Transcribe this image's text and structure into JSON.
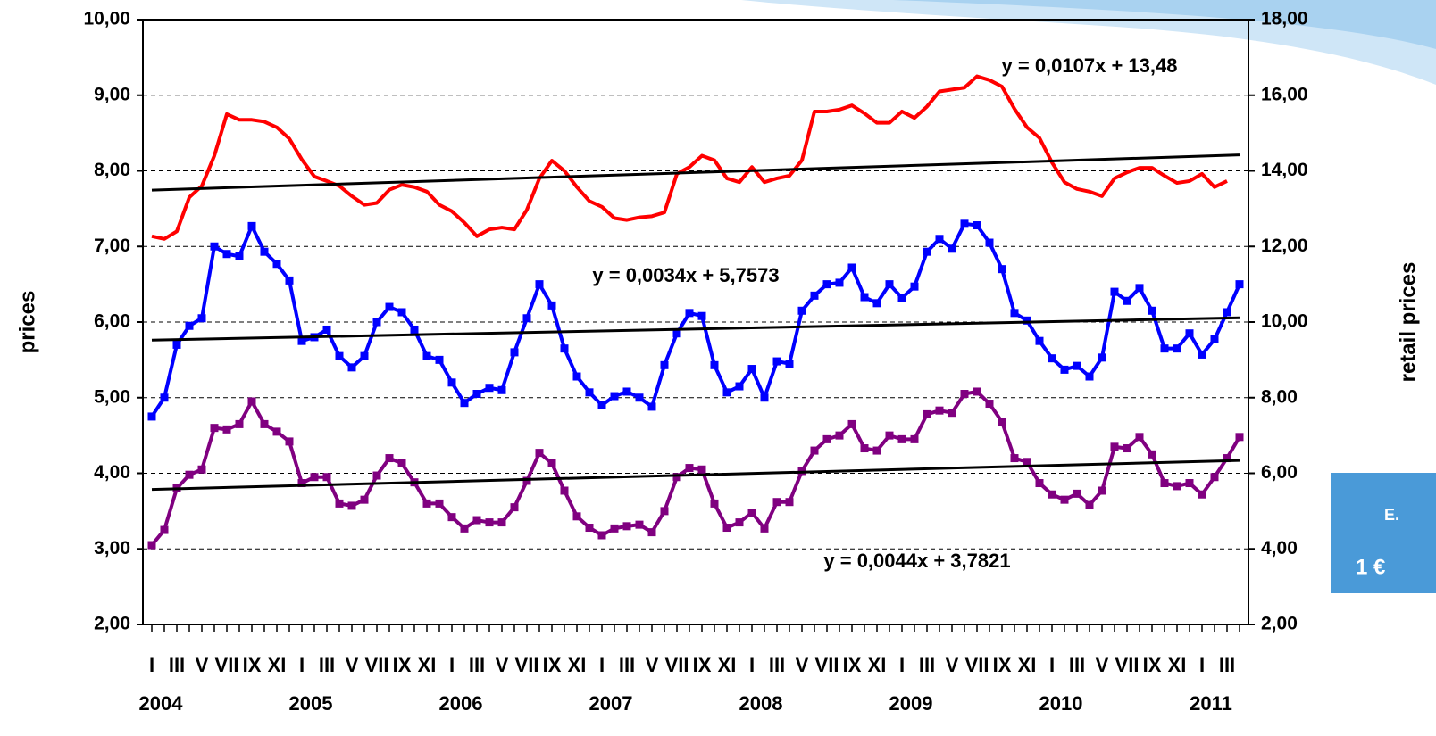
{
  "chart_data": {
    "type": "line",
    "categories": [
      "I",
      null,
      "III",
      null,
      "V",
      null,
      "VII",
      null,
      "IX",
      null,
      "XI",
      null,
      "I",
      null,
      "III",
      null,
      "V",
      null,
      "VII",
      null,
      "IX",
      null,
      "XI",
      null,
      "I",
      null,
      "III",
      null,
      "V",
      null,
      "VII",
      null,
      "IX",
      null,
      "XI",
      null,
      "I",
      null,
      "III",
      null,
      "V",
      null,
      "VII",
      null,
      "IX",
      null,
      "XI",
      null,
      "I",
      null,
      "III",
      null,
      "V",
      null,
      "VII",
      null,
      "IX",
      null,
      "XI",
      null,
      "I",
      null,
      "III",
      null,
      "V",
      null,
      "VII",
      null,
      "IX",
      null,
      "XI",
      null,
      "I",
      null,
      "III",
      null,
      "V",
      null,
      "VII",
      null,
      "IX",
      null,
      "XI",
      null,
      "I",
      null,
      "III",
      null
    ],
    "years": [
      "2004",
      "2005",
      "2006",
      "2007",
      "2008",
      "2009",
      "2010",
      "2011"
    ],
    "ylabel": "prices",
    "y2label": "retail prices",
    "ylim": [
      2,
      10
    ],
    "yticks": [
      {
        "value": 2,
        "label": "2,00"
      },
      {
        "value": 3,
        "label": "3,00"
      },
      {
        "value": 4,
        "label": "4,00"
      },
      {
        "value": 5,
        "label": "5,00"
      },
      {
        "value": 6,
        "label": "6,00"
      },
      {
        "value": 7,
        "label": "7,00"
      },
      {
        "value": 8,
        "label": "8,00"
      },
      {
        "value": 9,
        "label": "9,00"
      },
      {
        "value": 10,
        "label": "10,00"
      }
    ],
    "y2lim": [
      2,
      18
    ],
    "y2ticks": [
      {
        "value": 2,
        "label": "2,00"
      },
      {
        "value": 4,
        "label": "4,00"
      },
      {
        "value": 6,
        "label": "6,00"
      },
      {
        "value": 8,
        "label": "8,00"
      },
      {
        "value": 10,
        "label": "10,00"
      },
      {
        "value": 12,
        "label": "12,00"
      },
      {
        "value": 14,
        "label": "14,00"
      },
      {
        "value": 16,
        "label": "16,00"
      },
      {
        "value": 18,
        "label": "18,00"
      }
    ],
    "grid": true,
    "series": [
      {
        "color": "#ff0000",
        "axis": "y2",
        "markers": false,
        "values": [
          12.27,
          12.2,
          12.4,
          13.3,
          13.6,
          14.4,
          15.5,
          15.35,
          15.35,
          15.3,
          15.15,
          14.85,
          14.3,
          13.85,
          13.73,
          13.6,
          13.33,
          13.1,
          13.15,
          13.5,
          13.63,
          13.57,
          13.45,
          13.1,
          12.93,
          12.63,
          12.27,
          12.45,
          12.5,
          12.45,
          12.97,
          13.8,
          14.27,
          14.0,
          13.57,
          13.2,
          13.05,
          12.75,
          12.7,
          12.77,
          12.8,
          12.9,
          13.92,
          14.1,
          14.4,
          14.28,
          13.8,
          13.7,
          14.1,
          13.7,
          13.8,
          13.87,
          14.28,
          15.57,
          15.57,
          15.62,
          15.73,
          15.52,
          15.27,
          15.27,
          15.57,
          15.4,
          15.7,
          16.1,
          16.15,
          16.2,
          16.5,
          16.4,
          16.23,
          15.64,
          15.15,
          14.87,
          14.22,
          13.7,
          13.52,
          13.45,
          13.33,
          13.8,
          13.96,
          14.08,
          14.08,
          13.87,
          13.68,
          13.73,
          13.92,
          13.57,
          13.73,
          null
        ],
        "trend": {
          "slope": 0.0107,
          "intercept": 13.48,
          "label": "y = 0,0107x + 13,48",
          "color": "#000000"
        }
      },
      {
        "color": "#0000ff",
        "axis": "y",
        "markers": true,
        "values": [
          4.75,
          5.0,
          5.7,
          5.95,
          6.05,
          7.0,
          6.9,
          6.87,
          7.27,
          6.93,
          6.77,
          6.55,
          5.75,
          5.8,
          5.9,
          5.55,
          5.4,
          5.55,
          6.0,
          6.2,
          6.13,
          5.9,
          5.55,
          5.5,
          5.2,
          4.93,
          5.05,
          5.13,
          5.1,
          5.6,
          6.05,
          6.5,
          6.22,
          5.65,
          5.28,
          5.07,
          4.9,
          5.02,
          5.08,
          5.0,
          4.88,
          5.43,
          5.85,
          6.12,
          6.08,
          5.43,
          5.07,
          5.15,
          5.38,
          5.0,
          5.48,
          5.45,
          6.15,
          6.35,
          6.5,
          6.52,
          6.72,
          6.33,
          6.25,
          6.5,
          6.32,
          6.47,
          6.93,
          7.1,
          6.97,
          7.3,
          7.28,
          7.05,
          6.7,
          6.12,
          6.02,
          5.75,
          5.52,
          5.37,
          5.42,
          5.28,
          5.53,
          6.4,
          6.28,
          6.45,
          6.15,
          5.65,
          5.65,
          5.85,
          5.57,
          5.77,
          6.13,
          6.5
        ],
        "trend": {
          "slope": 0.0034,
          "intercept": 5.7573,
          "label": "y = 0,0034x + 5,7573",
          "color": "#000000"
        }
      },
      {
        "color": "#800080",
        "axis": "y",
        "markers": true,
        "values": [
          3.05,
          3.25,
          3.8,
          3.98,
          4.05,
          4.6,
          4.58,
          4.65,
          4.95,
          4.65,
          4.55,
          4.42,
          3.87,
          3.95,
          3.95,
          3.6,
          3.57,
          3.65,
          3.97,
          4.2,
          4.13,
          3.88,
          3.6,
          3.6,
          3.42,
          3.27,
          3.38,
          3.35,
          3.35,
          3.55,
          3.9,
          4.27,
          4.13,
          3.77,
          3.43,
          3.28,
          3.18,
          3.27,
          3.3,
          3.32,
          3.22,
          3.5,
          3.95,
          4.07,
          4.05,
          3.6,
          3.28,
          3.35,
          3.48,
          3.27,
          3.62,
          3.62,
          4.03,
          4.3,
          4.45,
          4.5,
          4.65,
          4.33,
          4.3,
          4.5,
          4.45,
          4.45,
          4.78,
          4.83,
          4.8,
          5.05,
          5.08,
          4.92,
          4.68,
          4.2,
          4.15,
          3.87,
          3.72,
          3.65,
          3.73,
          3.58,
          3.77,
          4.35,
          4.33,
          4.48,
          4.25,
          3.87,
          3.83,
          3.87,
          3.72,
          3.95,
          4.2,
          4.48
        ],
        "trend": {
          "slope": 0.0044,
          "intercept": 3.7821,
          "label": "y = 0,0044x + 3,7821",
          "color": "#000000"
        }
      }
    ]
  },
  "side_note": [
    "E.",
    "1 €"
  ]
}
